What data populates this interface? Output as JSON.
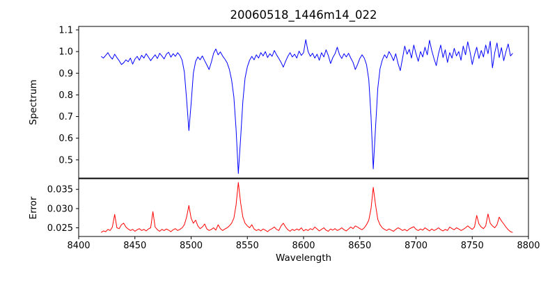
{
  "chart_data": {
    "type": "line",
    "title": "20060518_1446m14_022",
    "xlabel": "Wavelength",
    "xlim": [
      8400,
      8800
    ],
    "xticks": [
      8400,
      8450,
      8500,
      8550,
      8600,
      8650,
      8700,
      8750,
      8800
    ],
    "xtick_labels": [
      "8400",
      "8450",
      "8500",
      "8550",
      "8600",
      "8650",
      "8700",
      "8750",
      "8800"
    ],
    "x_start": 8420,
    "x_step": 2,
    "grid": false,
    "legend": "none",
    "background_color": "#ffffff",
    "notes": "Stellar spectrum with Ca II triplet absorption lines near 8498, 8542 and 8662 Angstrom; lower panel shows error spectrum with peaks at the same wavelengths.",
    "subplots": [
      {
        "name": "spectrum",
        "ylabel": "Spectrum",
        "ylim": [
          0.416,
          1.116
        ],
        "yticks": [
          0.5,
          0.6,
          0.7,
          0.8,
          0.9,
          1.0,
          1.1
        ],
        "ytick_labels": [
          "0.5",
          "0.6",
          "0.7",
          "0.8",
          "0.9",
          "1.0",
          "1.1"
        ],
        "line_color": "#0000ff",
        "values": [
          0.978,
          0.97,
          0.982,
          0.995,
          0.977,
          0.965,
          0.988,
          0.972,
          0.958,
          0.94,
          0.948,
          0.962,
          0.953,
          0.97,
          0.942,
          0.965,
          0.978,
          0.96,
          0.983,
          0.97,
          0.99,
          0.975,
          0.958,
          0.972,
          0.985,
          0.968,
          0.992,
          0.98,
          0.966,
          0.988,
          0.997,
          0.974,
          0.99,
          0.978,
          0.995,
          0.982,
          0.96,
          0.905,
          0.78,
          0.635,
          0.76,
          0.9,
          0.955,
          0.975,
          0.962,
          0.98,
          0.958,
          0.938,
          0.917,
          0.952,
          0.992,
          1.012,
          0.985,
          0.998,
          0.98,
          0.965,
          0.948,
          0.918,
          0.87,
          0.79,
          0.64,
          0.437,
          0.6,
          0.77,
          0.878,
          0.93,
          0.96,
          0.978,
          0.962,
          0.985,
          0.97,
          0.995,
          0.98,
          1.0,
          0.972,
          0.99,
          0.978,
          1.005,
          0.985,
          0.968,
          0.95,
          0.928,
          0.955,
          0.978,
          0.995,
          0.975,
          0.988,
          0.97,
          1.002,
          0.982,
          0.995,
          1.055,
          1.0,
          0.978,
          0.992,
          0.97,
          0.988,
          0.96,
          0.995,
          0.975,
          1.008,
          0.982,
          0.945,
          0.972,
          0.99,
          1.02,
          0.985,
          0.968,
          0.99,
          0.975,
          0.992,
          0.97,
          0.95,
          0.917,
          0.94,
          0.968,
          0.985,
          0.97,
          0.94,
          0.87,
          0.7,
          0.458,
          0.65,
          0.83,
          0.92,
          0.96,
          0.985,
          0.97,
          1.0,
          0.982,
          0.958,
          0.99,
          0.945,
          0.912,
          0.968,
          1.025,
          0.988,
          1.01,
          0.97,
          1.03,
          0.99,
          0.955,
          1.0,
          0.975,
          1.02,
          0.985,
          1.052,
          1.005,
          0.968,
          0.935,
          0.99,
          1.03,
          0.972,
          1.008,
          0.95,
          0.995,
          0.97,
          1.015,
          0.98,
          1.0,
          0.96,
          1.025,
          0.985,
          1.045,
          1.0,
          0.94,
          0.985,
          1.02,
          0.968,
          1.005,
          0.975,
          1.03,
          0.99,
          1.048,
          0.925,
          0.995,
          1.04,
          0.972,
          1.018,
          0.958,
          1.0,
          1.035,
          0.98,
          0.992
        ]
      },
      {
        "name": "error",
        "ylabel": "Error",
        "ylim": [
          0.02275,
          0.03775
        ],
        "yticks": [
          0.025,
          0.03,
          0.035
        ],
        "ytick_labels": [
          "0.025",
          "0.030",
          "0.035"
        ],
        "line_color": "#ff0000",
        "values": [
          0.0238,
          0.0242,
          0.024,
          0.0246,
          0.0243,
          0.0252,
          0.0285,
          0.025,
          0.0248,
          0.0258,
          0.0262,
          0.0252,
          0.0247,
          0.0243,
          0.0246,
          0.0241,
          0.0245,
          0.0248,
          0.0243,
          0.0246,
          0.0242,
          0.0247,
          0.025,
          0.0292,
          0.0252,
          0.0245,
          0.0241,
          0.0246,
          0.0243,
          0.0247,
          0.0244,
          0.024,
          0.0245,
          0.0248,
          0.0243,
          0.0246,
          0.025,
          0.0258,
          0.0278,
          0.0308,
          0.0275,
          0.0262,
          0.027,
          0.0255,
          0.0248,
          0.0252,
          0.026,
          0.0247,
          0.0243,
          0.0246,
          0.025,
          0.0244,
          0.0258,
          0.0248,
          0.0243,
          0.0247,
          0.025,
          0.0255,
          0.0262,
          0.0275,
          0.031,
          0.0368,
          0.0315,
          0.0278,
          0.0262,
          0.0255,
          0.025,
          0.0258,
          0.0247,
          0.0243,
          0.0246,
          0.0242,
          0.0247,
          0.0244,
          0.024,
          0.0245,
          0.0248,
          0.0252,
          0.0246,
          0.0243,
          0.0255,
          0.0262,
          0.0252,
          0.0245,
          0.0241,
          0.0246,
          0.0243,
          0.0247,
          0.0244,
          0.025,
          0.0242,
          0.0246,
          0.0243,
          0.0248,
          0.0245,
          0.0252,
          0.0247,
          0.0242,
          0.0246,
          0.025,
          0.0244,
          0.0241,
          0.0247,
          0.0244,
          0.0248,
          0.0243,
          0.0246,
          0.025,
          0.0245,
          0.0242,
          0.0247,
          0.0252,
          0.0248,
          0.0255,
          0.0252,
          0.0248,
          0.0245,
          0.025,
          0.0258,
          0.027,
          0.03,
          0.0355,
          0.031,
          0.0272,
          0.0258,
          0.025,
          0.0246,
          0.0243,
          0.0247,
          0.0244,
          0.0241,
          0.0246,
          0.025,
          0.0247,
          0.0243,
          0.0246,
          0.0242,
          0.0247,
          0.025,
          0.0253,
          0.0246,
          0.0243,
          0.0247,
          0.0244,
          0.025,
          0.0246,
          0.0242,
          0.0247,
          0.0243,
          0.0246,
          0.025,
          0.0245,
          0.0242,
          0.0246,
          0.0243,
          0.0252,
          0.0248,
          0.0245,
          0.025,
          0.0247,
          0.0243,
          0.0246,
          0.025,
          0.0255,
          0.025,
          0.0246,
          0.0252,
          0.0282,
          0.026,
          0.0252,
          0.0248,
          0.0255,
          0.0286,
          0.0262,
          0.0255,
          0.025,
          0.0258,
          0.0278,
          0.0268,
          0.026,
          0.0252,
          0.0245,
          0.024,
          0.0238
        ]
      }
    ]
  }
}
